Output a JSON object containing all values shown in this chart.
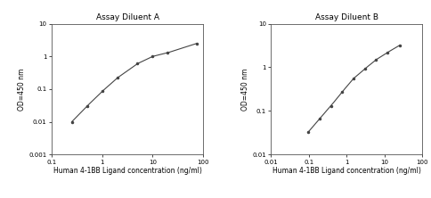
{
  "chart_A": {
    "title": "Assay Diluent A",
    "xlabel": "Human 4-1BB Ligand concentration (ng/ml)",
    "ylabel": "OD=450 nm",
    "x": [
      0.25,
      0.5,
      1.0,
      2.0,
      5.0,
      10.0,
      20.0,
      75.0
    ],
    "y": [
      0.01,
      0.03,
      0.085,
      0.22,
      0.6,
      1.0,
      1.3,
      2.5
    ],
    "xlim": [
      0.1,
      100
    ],
    "ylim": [
      0.001,
      10
    ],
    "xticks": [
      0.1,
      1,
      10,
      100
    ],
    "yticks": [
      0.001,
      0.01,
      0.1,
      1,
      10
    ],
    "yticklabels": [
      "0.001",
      "0.01",
      "0.1",
      "1",
      "10"
    ],
    "xticklabels": [
      "0.1",
      "1",
      "10",
      "100"
    ]
  },
  "chart_B": {
    "title": "Assay Diluent B",
    "xlabel": "Human 4-1BB Ligand concentration (ng/ml)",
    "ylabel": "OD=450 nm",
    "x": [
      0.094,
      0.19,
      0.38,
      0.75,
      1.5,
      3.0,
      6.0,
      12.0,
      25.0
    ],
    "y": [
      0.032,
      0.065,
      0.13,
      0.27,
      0.55,
      0.92,
      1.5,
      2.2,
      3.2
    ],
    "xlim": [
      0.01,
      100
    ],
    "ylim": [
      0.01,
      10
    ],
    "xticks": [
      0.01,
      0.1,
      1,
      10,
      100
    ],
    "yticks": [
      0.01,
      0.1,
      1,
      10
    ],
    "yticklabels": [
      "0.01",
      "0.1",
      "1",
      "10"
    ],
    "xticklabels": [
      "0.01",
      "0.1",
      "1",
      "10",
      "100"
    ]
  },
  "line_color": "#444444",
  "marker": ".",
  "markersize": 3,
  "linewidth": 0.8,
  "title_fontsize": 6.5,
  "label_fontsize": 5.5,
  "tick_fontsize": 5,
  "background_color": "#ffffff"
}
